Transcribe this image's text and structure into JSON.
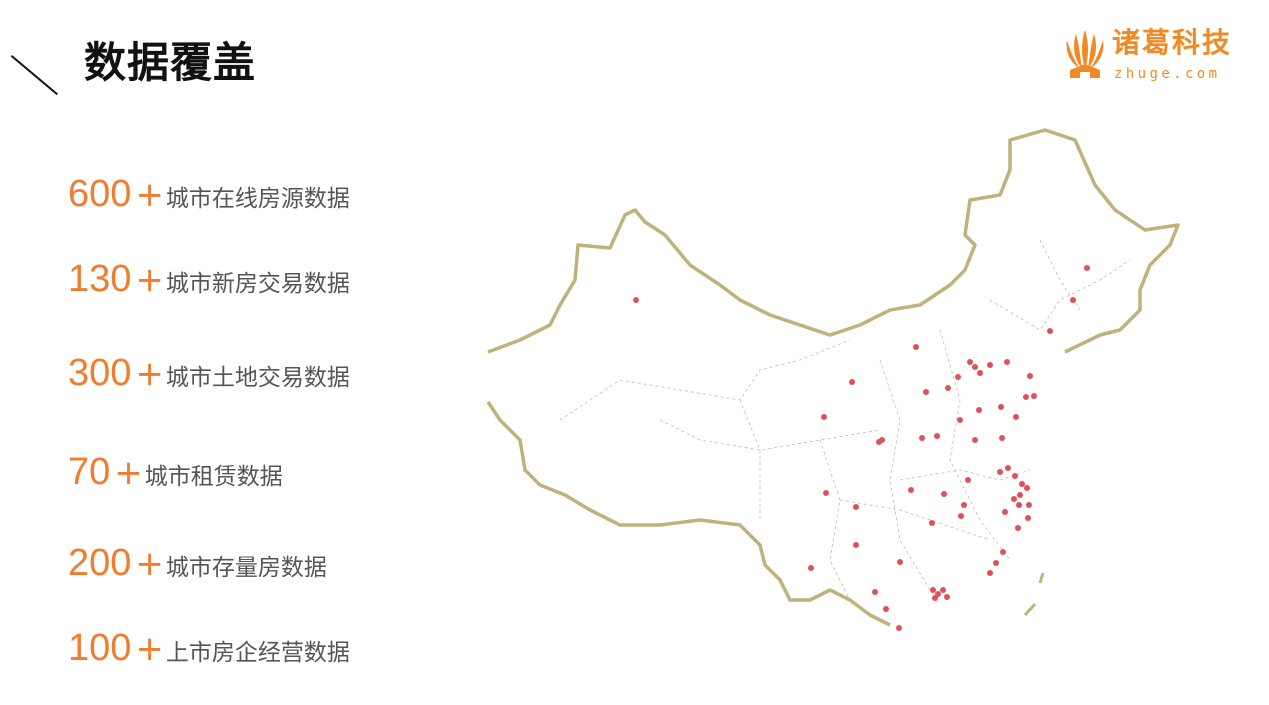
{
  "header": {
    "title": "数据覆盖"
  },
  "logo": {
    "cn": "诸葛科技",
    "en": "zhuge.com"
  },
  "stats": [
    {
      "number": "600",
      "plus": "+",
      "label": "城市在线房源数据"
    },
    {
      "number": "130",
      "plus": "+",
      "label": "城市新房交易数据"
    },
    {
      "number": "300",
      "plus": "+",
      "label": "城市土地交易数据"
    },
    {
      "number": "70",
      "plus": "+",
      "label": "城市租赁数据"
    },
    {
      "number": "200",
      "plus": "+",
      "label": "城市存量房数据"
    },
    {
      "number": "100",
      "plus": "+",
      "label": "上市房企经营数据"
    }
  ],
  "colors": {
    "accent": "#ef7d2d",
    "border": "#bfb27a",
    "city_dot": "#e0505a"
  }
}
